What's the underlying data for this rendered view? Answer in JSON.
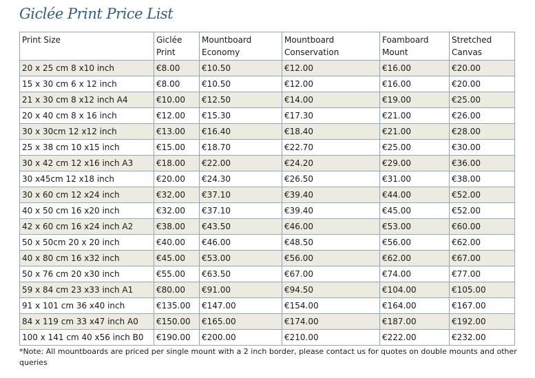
{
  "title": "Giclée Print Price List",
  "table": {
    "headers": [
      "Print Size",
      "Giclée Print",
      "Mountboard Economy",
      "Mountboard Conservation",
      "Foamboard Mount",
      "Stretched Canvas"
    ],
    "rows": [
      [
        "20 x 25 cm 8 x10 inch",
        "€8.00",
        "€10.50",
        "€12.00",
        "€16.00",
        "€20.00"
      ],
      [
        "15 x 30 cm 6 x 12 inch",
        "€8.00",
        "€10.50",
        "€12.00",
        "€16.00",
        "€20.00"
      ],
      [
        "21 x 30 cm 8 x12 inch A4",
        "€10.00",
        "€12.50",
        "€14.00",
        "€19.00",
        "€25.00"
      ],
      [
        "20 x 40 cm 8 x 16 inch",
        "€12.00",
        "€15.30",
        "€17.30",
        "€21.00",
        "€26.00"
      ],
      [
        "30 x 30cm 12 x12 inch",
        "€13.00",
        "€16.40",
        "€18.40",
        "€21.00",
        "€28.00"
      ],
      [
        "25 x 38 cm 10 x15 inch",
        "€15.00",
        "€18.70",
        "€22.70",
        "€25.00",
        "€30.00"
      ],
      [
        "30 x 42 cm 12 x16 inch A3",
        "€18.00",
        "€22.00",
        "€24.20",
        "€29.00",
        "€36.00"
      ],
      [
        "30 x45cm 12 x18 inch",
        "€20.00",
        "€24.30",
        "€26.50",
        "€31.00",
        "€38.00"
      ],
      [
        "30 x 60 cm 12 x24 inch",
        "€32.00",
        "€37.10",
        "€39.40",
        "€44.00",
        "€52.00"
      ],
      [
        "40 x 50 cm 16 x20 inch",
        "€32.00",
        "€37.10",
        "€39.40",
        "€45.00",
        "€52.00"
      ],
      [
        "42 x 60 cm 16 x24 inch A2",
        "€38.00",
        "€43.50",
        "€46.00",
        "€53.00",
        "€60.00"
      ],
      [
        "50 x 50cm 20 x 20 inch",
        "€40.00",
        "€46.00",
        "€48.50",
        "€56.00",
        "€62.00"
      ],
      [
        "40 x 80 cm 16 x32 inch",
        "€45.00",
        "€53.00",
        "€56.00",
        "€62.00",
        "€67.00"
      ],
      [
        "50 x 76 cm 20 x30 inch",
        "€55.00",
        "€63.50",
        "€67.00",
        "€74.00",
        "€77.00"
      ],
      [
        "59 x 84 cm 23 x33 inch A1",
        "€80.00",
        "€91.00",
        "€94.50",
        "€104.00",
        "€105.00"
      ],
      [
        "91 x 101 cm 36 x40 inch",
        "€135.00",
        "€147.00",
        "€154.00",
        "€164.00",
        "€167.00"
      ],
      [
        "84 x 119 cm 33 x47 inch A0",
        "€150.00",
        "€165.00",
        "€174.00",
        "€187.00",
        "€192.00"
      ],
      [
        "100 x 141 cm 40 x56 inch B0",
        "€190.00",
        "€200.00",
        "€210.00",
        "€222.00",
        "€232.00"
      ]
    ]
  },
  "note": "*Note: All mountboards are priced per single mount with a 2 inch border, please contact us for quotes on double mounts and other queries",
  "colors": {
    "title": "#2e5f86",
    "border": "#8aa7c4",
    "row_shade": "#ecebe0"
  }
}
